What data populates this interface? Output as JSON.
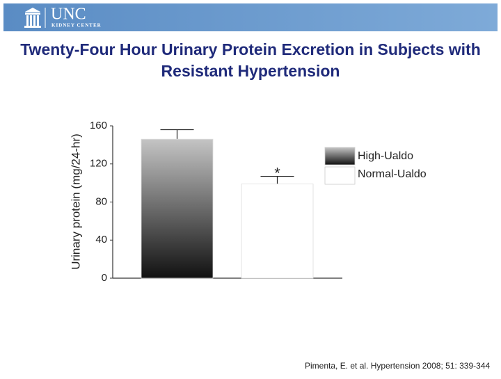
{
  "header": {
    "logo": "UNC",
    "logo_subtitle": "KIDNEY CENTER"
  },
  "chart_data": {
    "type": "bar",
    "title": "Twenty-Four Hour Urinary Protein Excretion in Subjects with Resistant Hypertension",
    "ylabel": "Urinary protein (mg/24-hr)",
    "categories": [
      null
    ],
    "series": [
      {
        "name": "High-Ualdo",
        "color": [
          "#c4c4c4",
          "#111111"
        ],
        "values": [
          146
        ],
        "errors": [
          10
        ]
      },
      {
        "name": "Normal-Ualdo",
        "color": [
          "#ffffff",
          "#ffffff"
        ],
        "values": [
          99
        ],
        "errors": [
          8
        ]
      }
    ],
    "annotation": "*",
    "ylim": [
      0,
      160
    ],
    "yticks": [
      0,
      40,
      80,
      120,
      160
    ],
    "grid": false,
    "legend": "right"
  },
  "source": "Pimenta, E. et al. Hypertension 2008; 51: 339-344"
}
